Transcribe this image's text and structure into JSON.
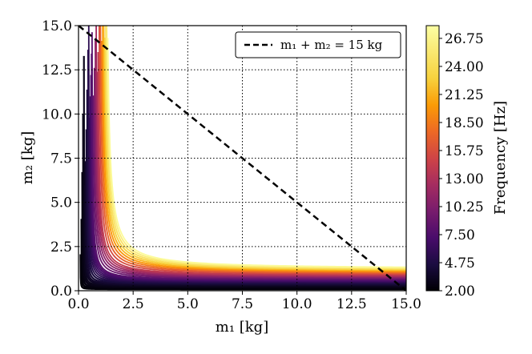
{
  "chart_data": {
    "type": "heatmap",
    "xlabel": "m₁ [kg]",
    "ylabel": "m₂ [kg]",
    "xlim": [
      0,
      15
    ],
    "ylim": [
      0,
      15
    ],
    "x_ticks": [
      "0.0",
      "2.5",
      "5.0",
      "7.5",
      "10.0",
      "12.5",
      "15.0"
    ],
    "y_ticks": [
      "0.0",
      "2.5",
      "5.0",
      "7.5",
      "10.0",
      "12.5",
      "15.0"
    ],
    "grid": true,
    "colormap": "inferno",
    "colorbar": {
      "label": "Frequency [Hz]",
      "range": [
        2.0,
        28.0
      ],
      "ticks": [
        "2.00",
        "4.75",
        "7.50",
        "10.25",
        "13.00",
        "15.75",
        "18.50",
        "21.25",
        "24.00",
        "26.75"
      ]
    },
    "contour_levels_hz": [
      2.15,
      2.3,
      2.5,
      2.75,
      3.0,
      3.3,
      3.6,
      4.0,
      4.5,
      5.0,
      5.5,
      6.0,
      6.5,
      7.0,
      7.5,
      8.0,
      9.0,
      10.0,
      11.0,
      12.0,
      13.0,
      14.0,
      15.5,
      17.0,
      18.5,
      20.0,
      21.5,
      23.0,
      24.5,
      26.0,
      27.5
    ],
    "series": [
      {
        "name": "m₁ + m₂ = 15 kg",
        "style": "dashed",
        "x": [
          0,
          15
        ],
        "y": [
          15,
          0
        ]
      }
    ],
    "legend_position": "top-right"
  }
}
